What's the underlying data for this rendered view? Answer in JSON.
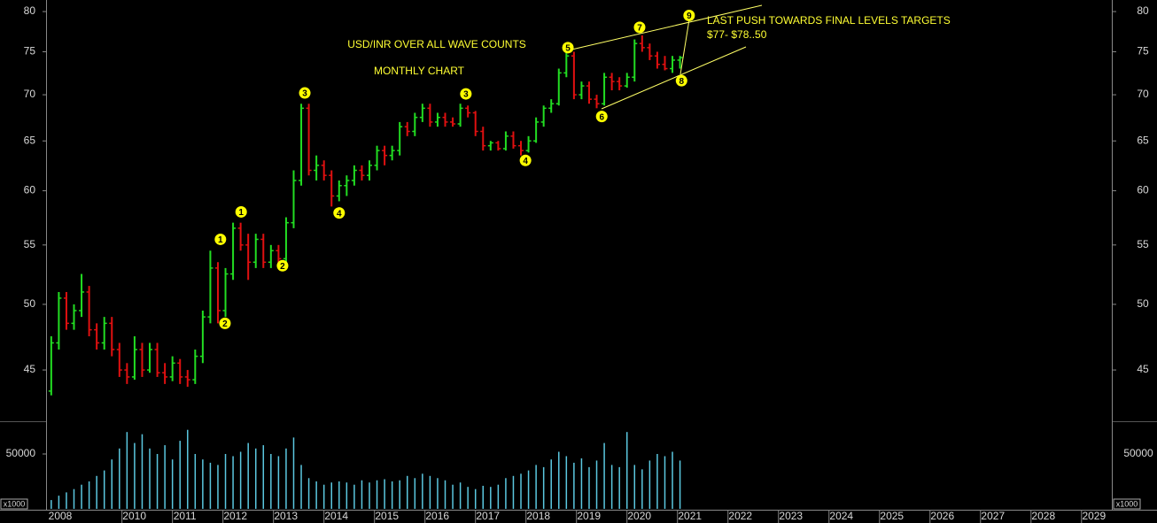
{
  "chart_data": {
    "type": "ohlc",
    "title": "USD/INR OVER ALL WAVE COUNTS",
    "subtitle": "MONTHLY CHART",
    "annotations_text": [
      "LAST PUSH TOWARDS FINAL LEVELS TARGETS",
      "$77- $78..50"
    ],
    "unit_label": "x1000",
    "log_scale": true,
    "up_color": "#22dd22",
    "down_color": "#e01010",
    "volume_color": "#5bc8e0",
    "ylim": [
      41.8,
      81.5
    ],
    "yticks": [
      45,
      50,
      55,
      60,
      65,
      70,
      75,
      80
    ],
    "volume_ylim": [
      0,
      76600
    ],
    "volume_yticks": [
      50000
    ],
    "xlim": [
      2008.55,
      2029.6
    ],
    "xticks": [
      2008,
      2010,
      2011,
      2012,
      2013,
      2014,
      2015,
      2016,
      2017,
      2018,
      2019,
      2020,
      2021,
      2022,
      2023,
      2024,
      2025,
      2026,
      2027,
      2028,
      2029
    ],
    "waves": [
      {
        "label": "1",
        "x": 2011.95,
        "y": 55.5
      },
      {
        "label": "2",
        "x": 2012.04,
        "y": 48.5
      },
      {
        "label": "1",
        "x": 2012.36,
        "y": 58
      },
      {
        "label": "2",
        "x": 2013.18,
        "y": 53.2
      },
      {
        "label": "3",
        "x": 2013.62,
        "y": 70.2
      },
      {
        "label": "4",
        "x": 2014.3,
        "y": 57.9
      },
      {
        "label": "3",
        "x": 2016.81,
        "y": 70.1
      },
      {
        "label": "4",
        "x": 2017.99,
        "y": 63
      },
      {
        "label": "5",
        "x": 2018.83,
        "y": 75.5
      },
      {
        "label": "6",
        "x": 2019.5,
        "y": 67.6
      },
      {
        "label": "7",
        "x": 2020.25,
        "y": 78
      },
      {
        "label": "8",
        "x": 2021.08,
        "y": 71.6
      },
      {
        "label": "9",
        "x": 2021.23,
        "y": 79.5
      }
    ],
    "x": [
      2008.6,
      2008.75,
      2008.9,
      2009.05,
      2009.2,
      2009.35,
      2009.5,
      2009.65,
      2009.8,
      2009.95,
      2010.1,
      2010.25,
      2010.4,
      2010.55,
      2010.7,
      2010.85,
      2011.0,
      2011.15,
      2011.3,
      2011.45,
      2011.6,
      2011.75,
      2011.9,
      2012.05,
      2012.2,
      2012.35,
      2012.5,
      2012.65,
      2012.8,
      2012.95,
      2013.1,
      2013.25,
      2013.4,
      2013.55,
      2013.7,
      2013.85,
      2014.0,
      2014.15,
      2014.3,
      2014.45,
      2014.6,
      2014.75,
      2014.9,
      2015.05,
      2015.2,
      2015.35,
      2015.5,
      2015.65,
      2015.8,
      2015.95,
      2016.1,
      2016.25,
      2016.4,
      2016.55,
      2016.7,
      2016.85,
      2017.0,
      2017.15,
      2017.3,
      2017.45,
      2017.6,
      2017.75,
      2017.9,
      2018.05,
      2018.2,
      2018.35,
      2018.5,
      2018.65,
      2018.8,
      2018.95,
      2019.1,
      2019.25,
      2019.4,
      2019.55,
      2019.7,
      2019.85,
      2020.0,
      2020.15,
      2020.3,
      2020.45,
      2020.6,
      2020.75,
      2020.9,
      2021.05
    ],
    "open": [
      43.5,
      47,
      50.5,
      48.5,
      49.5,
      51,
      48,
      47,
      48.5,
      46.5,
      45,
      44.5,
      46.5,
      45,
      46.5,
      44.8,
      44.5,
      45.5,
      44.5,
      44.3,
      46,
      49,
      53,
      49.5,
      52.5,
      56.5,
      55,
      53.5,
      55.5,
      53.5,
      54.5,
      53.8,
      57,
      61,
      68.5,
      62,
      62.5,
      61.5,
      59.5,
      60.5,
      61,
      62,
      61.5,
      62.5,
      64,
      63.5,
      64,
      66.5,
      66,
      67.5,
      68.5,
      67,
      67.5,
      67,
      66.8,
      68.5,
      68,
      66,
      64.5,
      64.8,
      64.2,
      65.5,
      64.5,
      64,
      65,
      67,
      68.5,
      69,
      72.5,
      74.5,
      70,
      71,
      69.5,
      69,
      72,
      71.5,
      71,
      72,
      76,
      75.5,
      74.5,
      73.5,
      73,
      74
    ],
    "high": [
      47.5,
      51,
      51,
      50,
      52.5,
      51.5,
      48.5,
      49,
      49,
      47,
      45.5,
      47.5,
      47,
      47,
      47,
      45.5,
      46,
      45.8,
      45,
      46.5,
      49.5,
      54.5,
      53.5,
      53,
      57,
      57,
      56,
      56,
      56,
      55,
      55,
      57.5,
      62,
      69,
      69,
      63.5,
      63,
      62,
      61,
      61.5,
      62.5,
      62.5,
      63,
      64.5,
      64.5,
      64.5,
      67,
      67,
      68,
      69,
      69,
      68,
      68,
      67.5,
      69,
      68.8,
      68.2,
      66.5,
      65,
      65,
      66,
      66,
      65,
      65.5,
      67.5,
      68.8,
      69.5,
      73,
      75,
      75,
      71.5,
      71.5,
      70,
      72.5,
      72.5,
      72,
      72.5,
      76.5,
      77,
      76,
      75,
      74.5,
      74.5,
      74.5
    ],
    "low": [
      43.2,
      46.5,
      48,
      48,
      49,
      47.5,
      46.5,
      46.5,
      46,
      44.5,
      44,
      44.3,
      44.5,
      44.8,
      44.5,
      44,
      44.2,
      44,
      43.8,
      44,
      45.5,
      48.5,
      48.5,
      49,
      52,
      54.5,
      52,
      53,
      53,
      53,
      53,
      53.5,
      56.5,
      60.5,
      61.5,
      61,
      61,
      58.5,
      59,
      59.5,
      60.5,
      61,
      61,
      62,
      62.5,
      63,
      63.5,
      65.5,
      65.5,
      67,
      66.5,
      66.5,
      66.5,
      66.5,
      66.5,
      67.5,
      65.5,
      64,
      64,
      64,
      64,
      64.2,
      63.5,
      63.8,
      64.8,
      66.5,
      68,
      68.8,
      72,
      69.5,
      69.5,
      69,
      68.5,
      68.8,
      70.5,
      70.5,
      70.8,
      71.5,
      75,
      74,
      73,
      72.8,
      72.5,
      73
    ],
    "close": [
      47,
      50.5,
      48.5,
      49.5,
      51,
      48,
      47,
      48.5,
      46.5,
      45,
      44.5,
      46.5,
      45,
      46.5,
      44.8,
      44.5,
      45.5,
      44.5,
      44.3,
      46,
      49,
      53,
      49.5,
      52.5,
      56.5,
      55,
      53.5,
      55.5,
      53.5,
      54.5,
      53.8,
      57,
      61,
      68.5,
      62,
      62.5,
      61.5,
      59.5,
      60.5,
      61,
      62,
      61.5,
      62.5,
      64,
      63.5,
      64,
      66.5,
      66,
      67.5,
      68.5,
      67,
      67.5,
      67,
      66.8,
      68.5,
      68,
      66,
      64.5,
      64.8,
      64.2,
      65.5,
      64.5,
      64,
      65,
      67,
      68.5,
      69,
      72.5,
      74.5,
      70,
      71,
      69.5,
      69,
      72,
      71.5,
      71,
      72,
      76,
      75.5,
      74.5,
      73.5,
      73,
      74,
      74.3
    ],
    "volume": [
      8000,
      12000,
      15000,
      18000,
      22000,
      25000,
      30000,
      35000,
      45000,
      55000,
      70000,
      60000,
      68000,
      55000,
      50000,
      58000,
      45000,
      62000,
      72000,
      50000,
      45000,
      42000,
      40000,
      50000,
      48000,
      52000,
      60000,
      55000,
      58000,
      50000,
      48000,
      55000,
      65000,
      40000,
      28000,
      25000,
      22000,
      24000,
      25000,
      24000,
      22000,
      26000,
      24000,
      26000,
      27000,
      25000,
      26000,
      30000,
      28000,
      32000,
      30000,
      28000,
      26000,
      22000,
      24000,
      20000,
      18000,
      21000,
      20000,
      22000,
      28000,
      30000,
      32000,
      35000,
      40000,
      38000,
      45000,
      52000,
      48000,
      42000,
      46000,
      38000,
      44000,
      60000,
      40000,
      38000,
      70000,
      40000,
      36000,
      44000,
      50000,
      48000,
      52000,
      44000
    ]
  }
}
